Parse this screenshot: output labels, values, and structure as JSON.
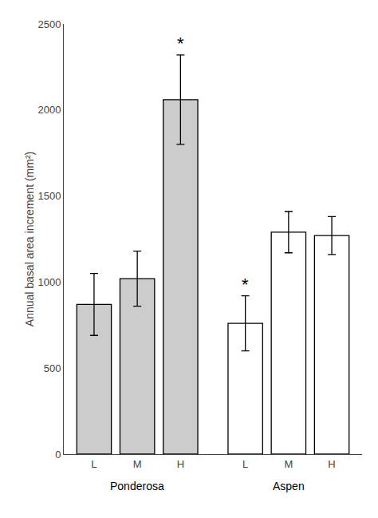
{
  "chart_data": {
    "type": "bar",
    "categories": [
      "L",
      "M",
      "H"
    ],
    "series": [
      {
        "name": "Ponderosa",
        "color": "#cccccc",
        "values": [
          870,
          1020,
          2060
        ],
        "errors": [
          180,
          160,
          260
        ]
      },
      {
        "name": "Aspen",
        "color": "#ffffff",
        "values": [
          760,
          1290,
          1270
        ],
        "errors": [
          160,
          120,
          110
        ]
      }
    ],
    "ylabel": "Annual basal area increment (mm²)",
    "ylim": [
      0,
      2500
    ],
    "yticks": [
      0,
      500,
      1000,
      1500,
      2000,
      2500
    ],
    "grid": false,
    "annotations": [
      {
        "text": "*",
        "series": "Ponderosa",
        "category": "H"
      },
      {
        "text": "*",
        "series": "Aspen",
        "category": "L"
      }
    ]
  }
}
